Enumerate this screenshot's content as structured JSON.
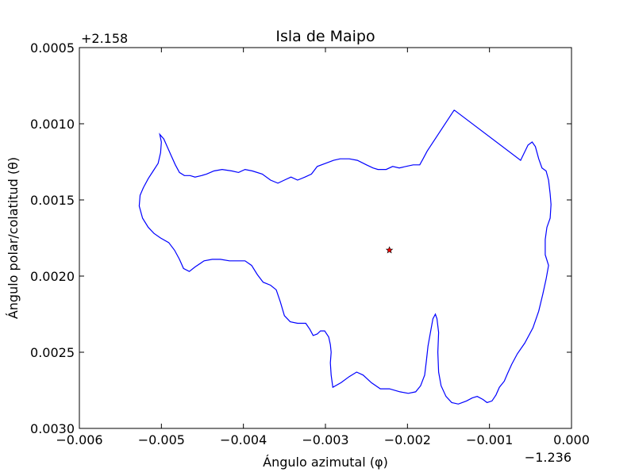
{
  "chart_data": {
    "type": "line",
    "title": "Isla de Maipo",
    "xlabel": "Ángulo azimutal (φ)",
    "ylabel": "Ángulo polar/colatitud (θ)",
    "x_offset_label": "−1.236",
    "y_offset_label": "+2.158",
    "xlim": [
      -0.006,
      0.0
    ],
    "ylim": [
      0.003,
      0.0005
    ],
    "y_inverted": true,
    "grid": false,
    "x_ticks": [
      {
        "value": -0.006,
        "label": "−0.006"
      },
      {
        "value": -0.005,
        "label": "−0.005"
      },
      {
        "value": -0.004,
        "label": "−0.004"
      },
      {
        "value": -0.003,
        "label": "−0.003"
      },
      {
        "value": -0.002,
        "label": "−0.002"
      },
      {
        "value": -0.001,
        "label": "−0.001"
      },
      {
        "value": 0.0,
        "label": "0.000"
      }
    ],
    "y_ticks": [
      {
        "value": 0.0005,
        "label": "0.0005"
      },
      {
        "value": 0.001,
        "label": "0.0010"
      },
      {
        "value": 0.0015,
        "label": "0.0015"
      },
      {
        "value": 0.002,
        "label": "0.0020"
      },
      {
        "value": 0.0025,
        "label": "0.0025"
      },
      {
        "value": 0.003,
        "label": "0.0030"
      }
    ],
    "series": [
      {
        "color": "#0000ff",
        "points": [
          [
            -0.00143,
            0.00091
          ],
          [
            -0.00062,
            0.00124
          ],
          [
            -0.00053,
            0.00114
          ],
          [
            -0.00048,
            0.00112
          ],
          [
            -0.00044,
            0.00115
          ],
          [
            -0.0004,
            0.00123
          ],
          [
            -0.00036,
            0.00129
          ],
          [
            -0.00031,
            0.00131
          ],
          [
            -0.00028,
            0.00137
          ],
          [
            -0.00026,
            0.00146
          ],
          [
            -0.00025,
            0.00153
          ],
          [
            -0.00026,
            0.00162
          ],
          [
            -0.0003,
            0.00168
          ],
          [
            -0.00032,
            0.00176
          ],
          [
            -0.00032,
            0.00186
          ],
          [
            -0.00028,
            0.00193
          ],
          [
            -0.00031,
            0.00202
          ],
          [
            -0.00035,
            0.00212
          ],
          [
            -0.0004,
            0.00223
          ],
          [
            -0.00047,
            0.00234
          ],
          [
            -0.00057,
            0.00244
          ],
          [
            -0.00066,
            0.00251
          ],
          [
            -0.00073,
            0.00258
          ],
          [
            -0.00078,
            0.00264
          ],
          [
            -0.00082,
            0.00269
          ],
          [
            -0.00088,
            0.00273
          ],
          [
            -0.00092,
            0.00278
          ],
          [
            -0.00097,
            0.00282
          ],
          [
            -0.00103,
            0.00283
          ],
          [
            -0.00108,
            0.00281
          ],
          [
            -0.00115,
            0.00279
          ],
          [
            -0.00121,
            0.0028
          ],
          [
            -0.00128,
            0.00282
          ],
          [
            -0.00138,
            0.00284
          ],
          [
            -0.00146,
            0.00283
          ],
          [
            -0.00153,
            0.00279
          ],
          [
            -0.00159,
            0.00272
          ],
          [
            -0.00162,
            0.00263
          ],
          [
            -0.00163,
            0.0025
          ],
          [
            -0.00162,
            0.00237
          ],
          [
            -0.00164,
            0.00228
          ],
          [
            -0.00166,
            0.00225
          ],
          [
            -0.00169,
            0.00228
          ],
          [
            -0.00172,
            0.00237
          ],
          [
            -0.00175,
            0.00246
          ],
          [
            -0.00177,
            0.00256
          ],
          [
            -0.00179,
            0.00265
          ],
          [
            -0.00184,
            0.00272
          ],
          [
            -0.0019,
            0.00276
          ],
          [
            -0.00199,
            0.00277
          ],
          [
            -0.00209,
            0.00276
          ],
          [
            -0.00222,
            0.00274
          ],
          [
            -0.00233,
            0.00274
          ],
          [
            -0.00244,
            0.0027
          ],
          [
            -0.00254,
            0.00265
          ],
          [
            -0.00262,
            0.00263
          ],
          [
            -0.00271,
            0.00266
          ],
          [
            -0.00281,
            0.0027
          ],
          [
            -0.00291,
            0.00273
          ],
          [
            -0.00293,
            0.00265
          ],
          [
            -0.00294,
            0.00257
          ],
          [
            -0.00293,
            0.0025
          ],
          [
            -0.00294,
            0.00245
          ],
          [
            -0.00296,
            0.0024
          ],
          [
            -0.00301,
            0.00236
          ],
          [
            -0.00306,
            0.00236
          ],
          [
            -0.0031,
            0.00238
          ],
          [
            -0.00315,
            0.00239
          ],
          [
            -0.00319,
            0.00235
          ],
          [
            -0.00324,
            0.00231
          ],
          [
            -0.00334,
            0.00231
          ],
          [
            -0.00343,
            0.0023
          ],
          [
            -0.0035,
            0.00226
          ],
          [
            -0.00355,
            0.00217
          ],
          [
            -0.0036,
            0.00209
          ],
          [
            -0.00367,
            0.00206
          ],
          [
            -0.00376,
            0.00204
          ],
          [
            -0.00383,
            0.00199
          ],
          [
            -0.0039,
            0.00193
          ],
          [
            -0.00398,
            0.0019
          ],
          [
            -0.00408,
            0.0019
          ],
          [
            -0.00417,
            0.0019
          ],
          [
            -0.00428,
            0.00189
          ],
          [
            -0.00438,
            0.00189
          ],
          [
            -0.00448,
            0.0019
          ],
          [
            -0.00459,
            0.00194
          ],
          [
            -0.00466,
            0.00197
          ],
          [
            -0.00473,
            0.00195
          ],
          [
            -0.00478,
            0.00189
          ],
          [
            -0.00484,
            0.00183
          ],
          [
            -0.00491,
            0.00178
          ],
          [
            -0.00501,
            0.00175
          ],
          [
            -0.00509,
            0.00172
          ],
          [
            -0.00516,
            0.00168
          ],
          [
            -0.00523,
            0.00162
          ],
          [
            -0.00527,
            0.00154
          ],
          [
            -0.00526,
            0.00147
          ],
          [
            -0.00522,
            0.00142
          ],
          [
            -0.00516,
            0.00136
          ],
          [
            -0.0051,
            0.00131
          ],
          [
            -0.00504,
            0.00126
          ],
          [
            -0.00501,
            0.00119
          ],
          [
            -0.005,
            0.00112
          ],
          [
            -0.00502,
            0.00107
          ],
          [
            -0.00497,
            0.0011
          ],
          [
            -0.00493,
            0.00115
          ],
          [
            -0.00488,
            0.00121
          ],
          [
            -0.00483,
            0.00127
          ],
          [
            -0.00478,
            0.00132
          ],
          [
            -0.00472,
            0.00134
          ],
          [
            -0.00465,
            0.00134
          ],
          [
            -0.00459,
            0.00135
          ],
          [
            -0.00451,
            0.00134
          ],
          [
            -0.00445,
            0.00133
          ],
          [
            -0.00436,
            0.00131
          ],
          [
            -0.00426,
            0.0013
          ],
          [
            -0.00414,
            0.00131
          ],
          [
            -0.00406,
            0.00132
          ],
          [
            -0.00398,
            0.0013
          ],
          [
            -0.00389,
            0.00131
          ],
          [
            -0.00377,
            0.00133
          ],
          [
            -0.00367,
            0.00137
          ],
          [
            -0.00358,
            0.00139
          ],
          [
            -0.0035,
            0.00137
          ],
          [
            -0.00342,
            0.00135
          ],
          [
            -0.00334,
            0.00137
          ],
          [
            -0.00325,
            0.00135
          ],
          [
            -0.00317,
            0.00133
          ],
          [
            -0.0031,
            0.00128
          ],
          [
            -0.003,
            0.00126
          ],
          [
            -0.0029,
            0.00124
          ],
          [
            -0.00282,
            0.00123
          ],
          [
            -0.00271,
            0.00123
          ],
          [
            -0.00261,
            0.00124
          ],
          [
            -0.0025,
            0.00127
          ],
          [
            -0.00242,
            0.00129
          ],
          [
            -0.00236,
            0.0013
          ],
          [
            -0.00226,
            0.0013
          ],
          [
            -0.00218,
            0.00128
          ],
          [
            -0.0021,
            0.00129
          ],
          [
            -0.00202,
            0.00128
          ],
          [
            -0.00193,
            0.00127
          ],
          [
            -0.00185,
            0.00127
          ],
          [
            -0.00181,
            0.00123
          ],
          [
            -0.00176,
            0.00118
          ],
          [
            -0.00143,
            0.00091
          ]
        ]
      }
    ],
    "marker": {
      "x": -0.00222,
      "y": 0.00183,
      "symbol": "star",
      "color": "#ff0000"
    }
  }
}
